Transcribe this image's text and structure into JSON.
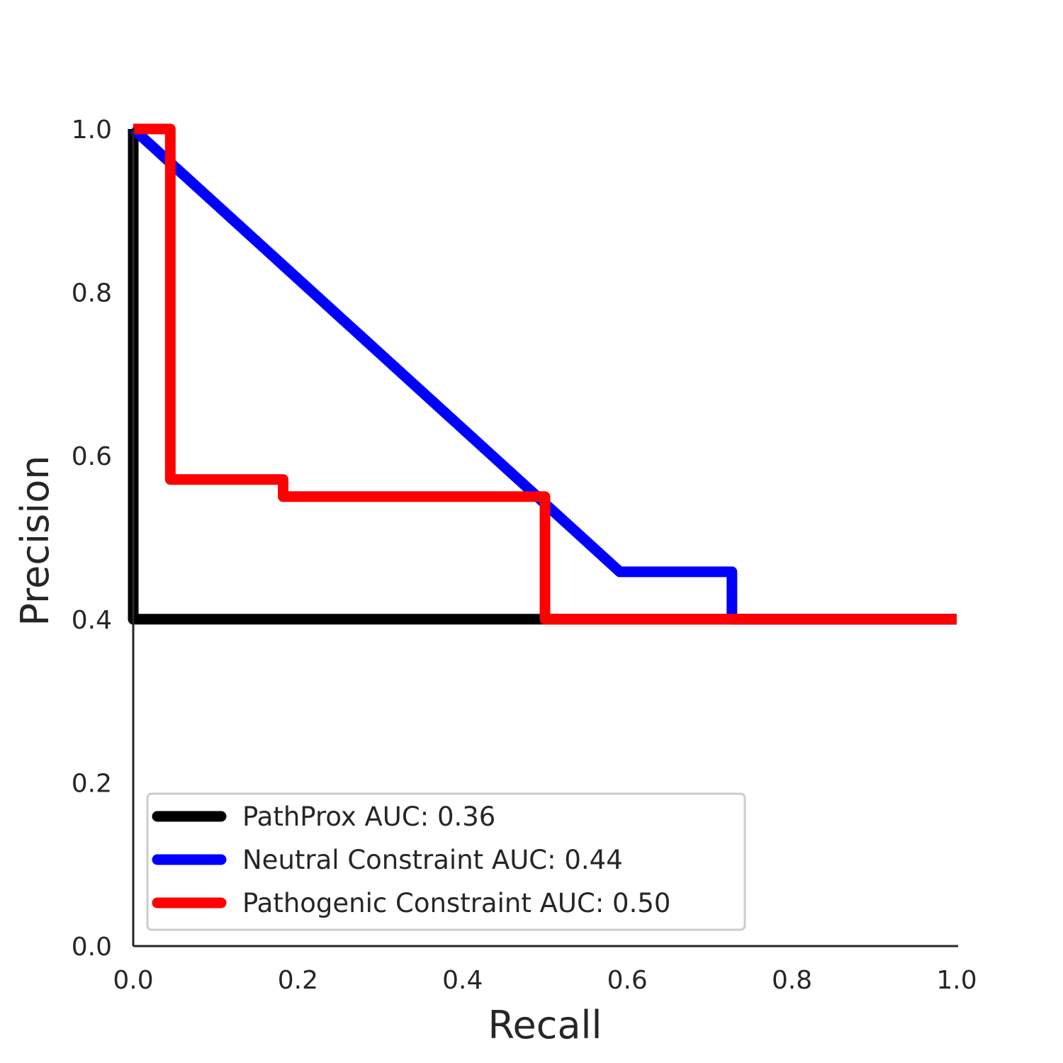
{
  "chart_data": {
    "type": "line",
    "title": "",
    "xlabel": "Recall",
    "ylabel": "Precision",
    "xlim": [
      0.0,
      1.0
    ],
    "ylim": [
      0.0,
      1.0
    ],
    "xticks": [
      "0.0",
      "0.2",
      "0.4",
      "0.6",
      "0.8",
      "1.0"
    ],
    "yticks": [
      "0.0",
      "0.2",
      "0.4",
      "0.6",
      "0.8",
      "1.0"
    ],
    "grid": false,
    "legend_position": "lower-left",
    "series": [
      {
        "name": "PathProx AUC:  0.36",
        "color": "#000000",
        "points": [
          [
            0.0,
            1.0
          ],
          [
            0.0,
            0.4
          ],
          [
            1.0,
            0.4
          ]
        ]
      },
      {
        "name": "Neutral Constraint AUC:  0.44",
        "color": "#0000ff",
        "points": [
          [
            0.0,
            1.0
          ],
          [
            0.591,
            0.458
          ],
          [
            0.727,
            0.458
          ],
          [
            0.727,
            0.4
          ],
          [
            1.0,
            0.4
          ]
        ]
      },
      {
        "name": "Pathogenic Constraint AUC:  0.50",
        "color": "#ff0000",
        "points": [
          [
            0.0,
            1.0
          ],
          [
            0.045,
            1.0
          ],
          [
            0.045,
            0.571
          ],
          [
            0.182,
            0.571
          ],
          [
            0.182,
            0.55
          ],
          [
            0.5,
            0.55
          ],
          [
            0.5,
            0.4
          ],
          [
            1.0,
            0.4
          ]
        ]
      }
    ]
  }
}
